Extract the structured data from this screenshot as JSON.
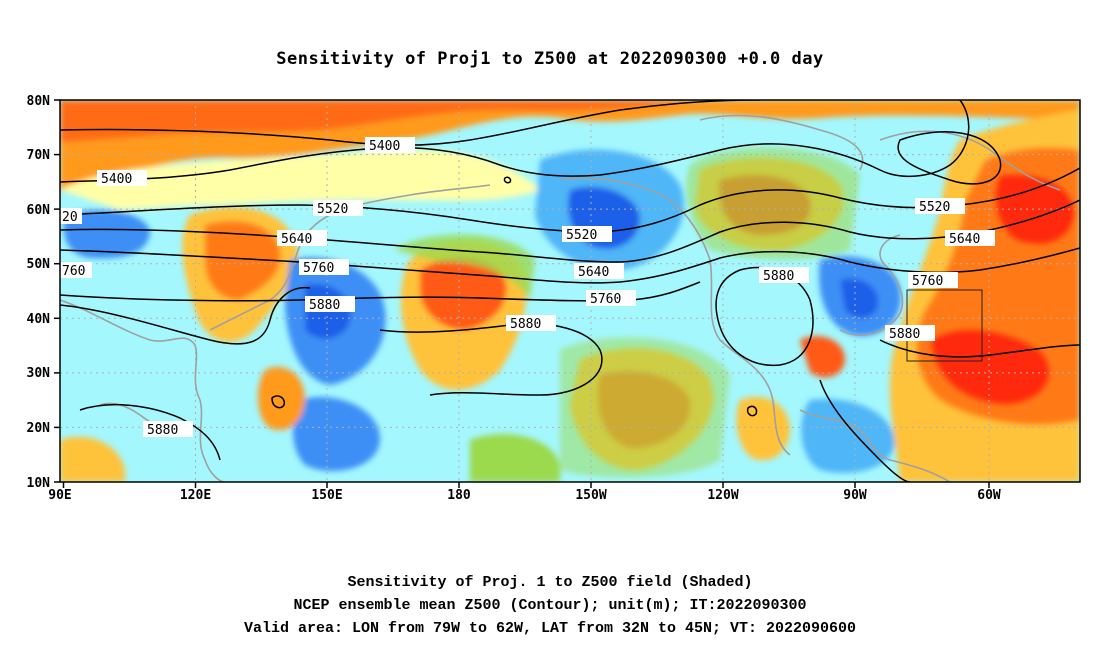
{
  "title": "Sensitivity of Proj1 to Z500 at 2022090300 +0.0 day",
  "captions": {
    "line1": "Sensitivity of Proj. 1 to Z500 field (Shaded)",
    "line2": "NCEP ensemble mean Z500 (Contour); unit(m); IT:2022090300",
    "line3": "Valid area: LON from 79W to 62W, LAT from 32N to 45N; VT: 2022090600"
  },
  "axes": {
    "lat_labels": [
      "80N",
      "70N",
      "60N",
      "50N",
      "40N",
      "30N",
      "20N",
      "10N"
    ],
    "lon_labels": [
      "90E",
      "120E",
      "150E",
      "180",
      "150W",
      "120W",
      "90W",
      "60W"
    ]
  },
  "contour_labels": [
    "5400",
    "5400",
    "5520",
    "5520",
    "5520",
    "20",
    "5640",
    "5640",
    "5640",
    "760",
    "5760",
    "5760",
    "5760",
    "5880",
    "5880",
    "5880",
    "5880",
    "5880"
  ],
  "colors": {
    "deep_blue": "#1e5ee8",
    "blue": "#3e8ff5",
    "mid_blue": "#4fb6f7",
    "light_blue": "#62e4fb",
    "cyan": "#a4f7fd",
    "pale_yellow": "#ffffa8",
    "green": "#9bd94d",
    "orange_light": "#ffc23a",
    "orange": "#ff9a1c",
    "red_orange": "#ff5a12",
    "red": "#ff2a0a",
    "coast": "#a0a0a0"
  }
}
